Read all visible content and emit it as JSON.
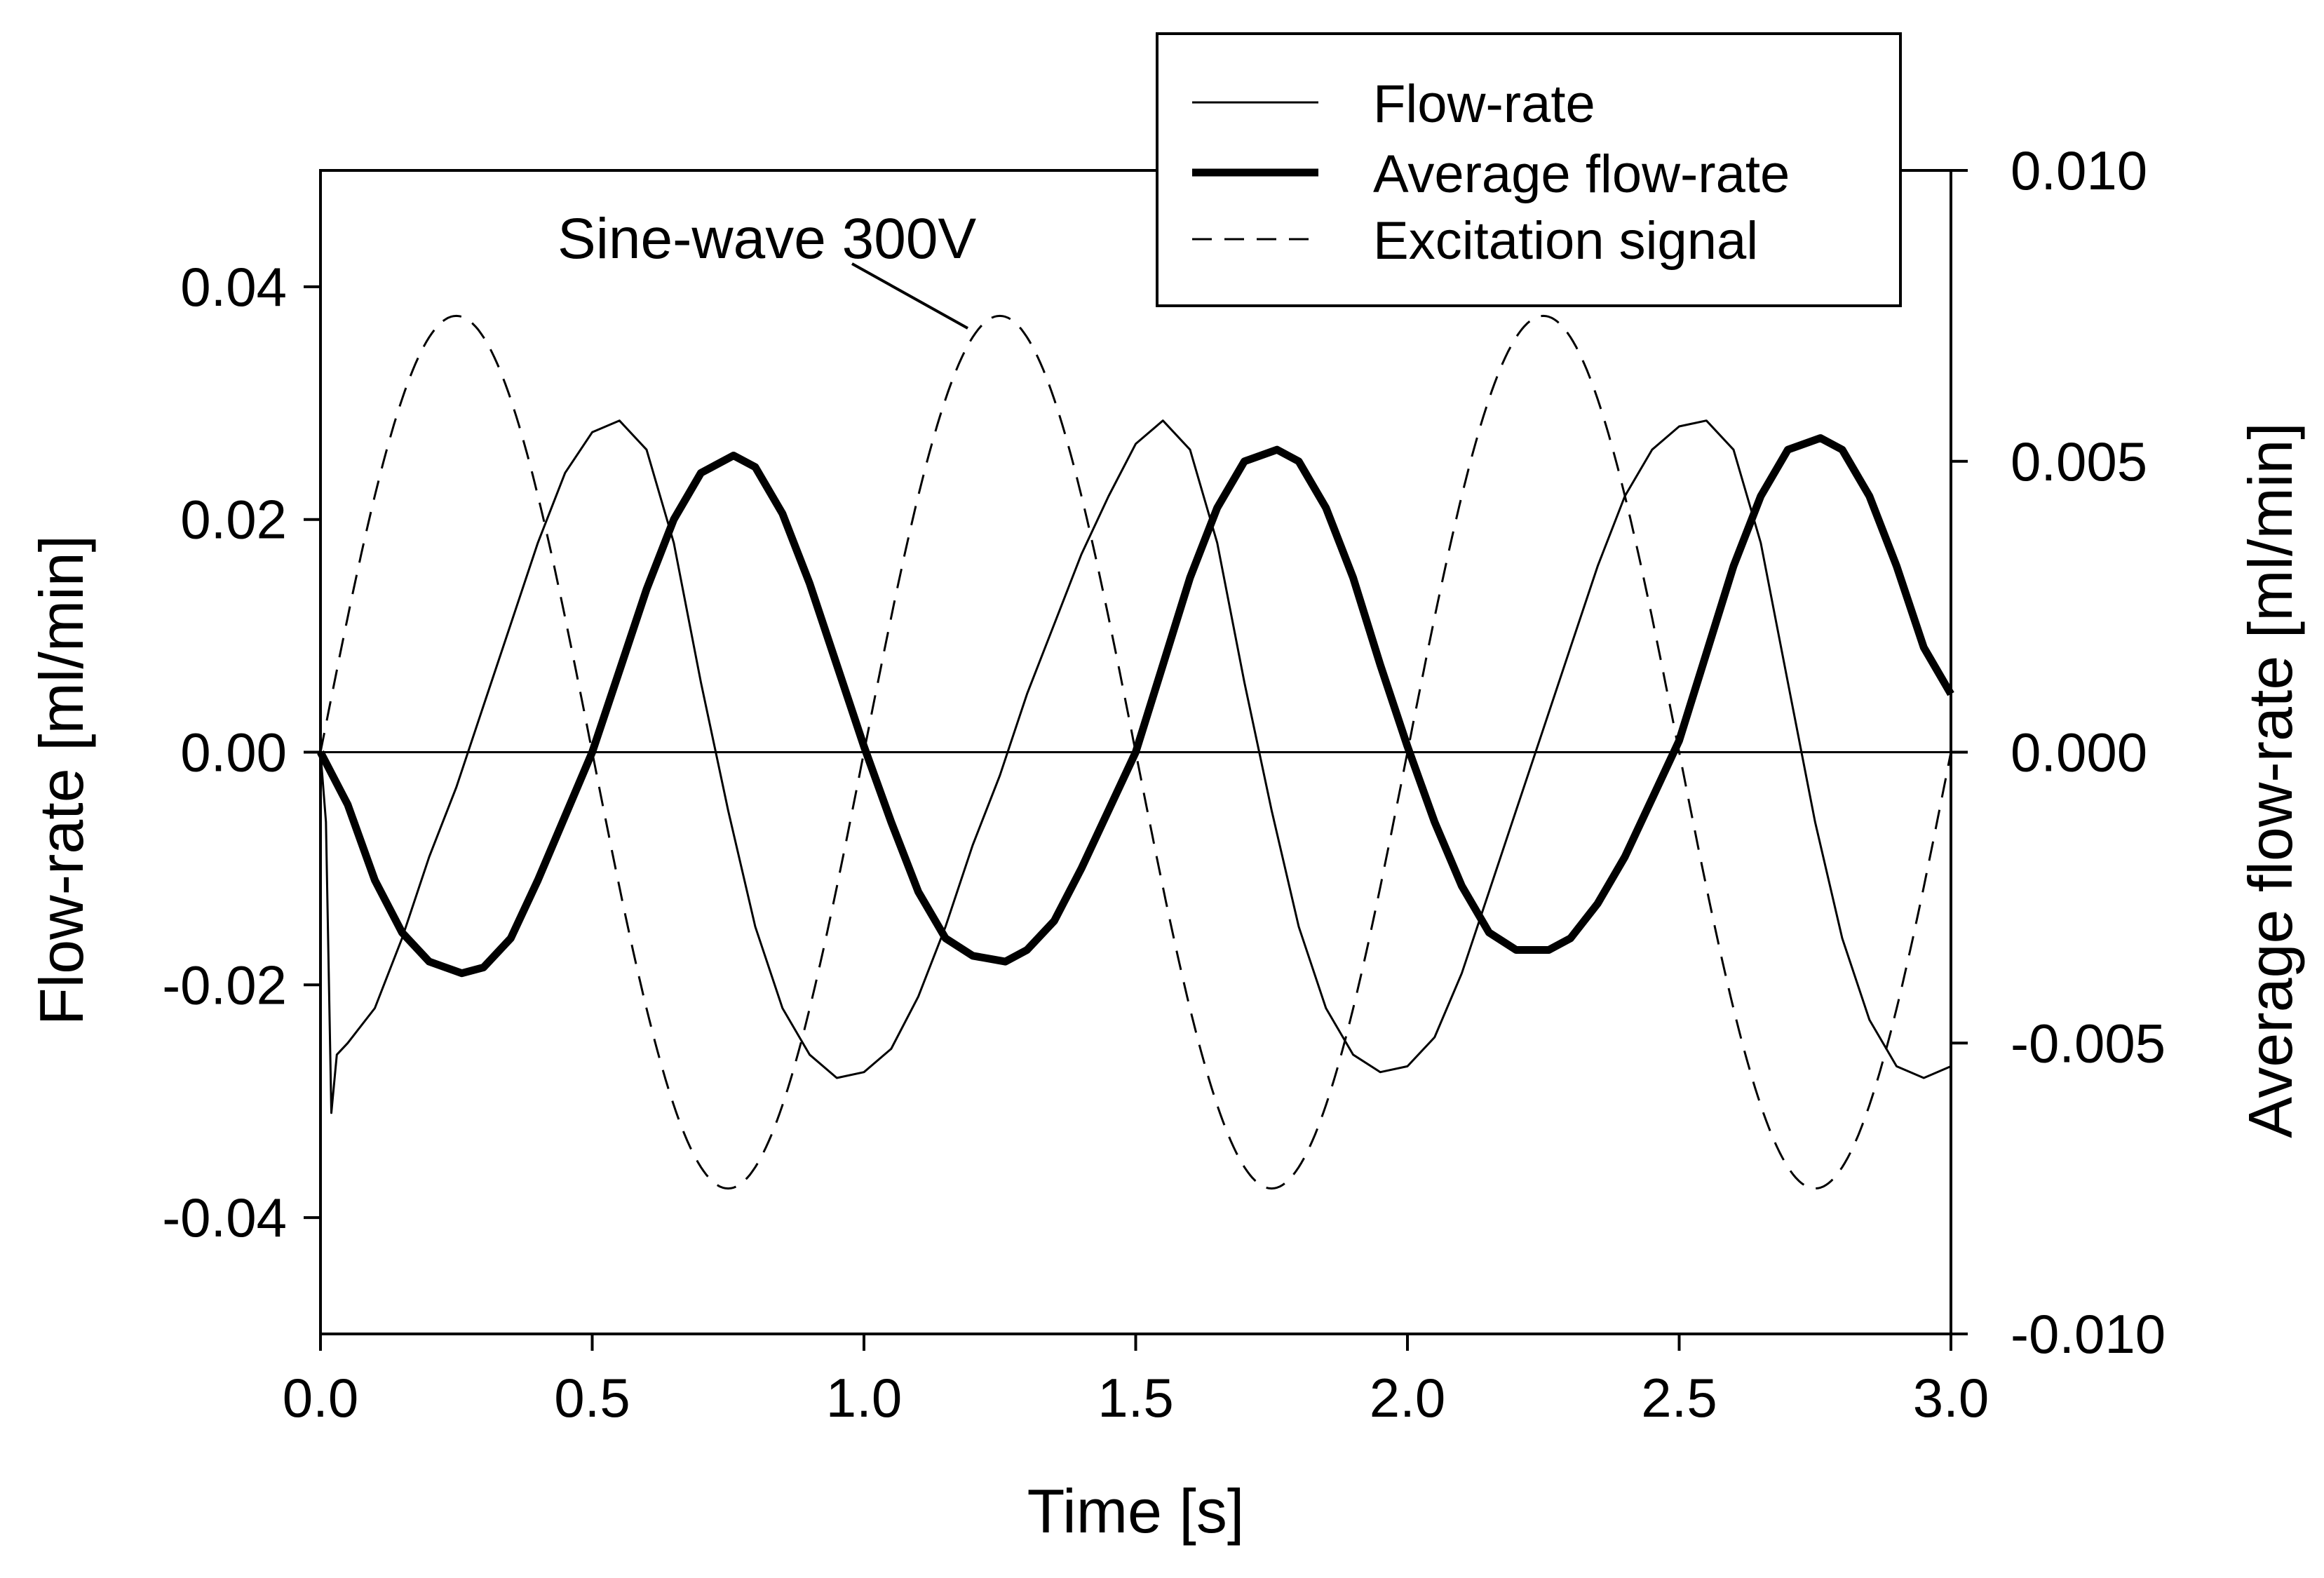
{
  "chart_data": {
    "type": "line",
    "annotation": "Sine-wave 300V",
    "x_axis": {
      "label": "Time [s]",
      "range": [
        0.0,
        3.0
      ],
      "ticks": [
        0.0,
        0.5,
        1.0,
        1.5,
        2.0,
        2.5,
        3.0
      ],
      "tick_labels": [
        "0.0",
        "0.5",
        "1.0",
        "1.5",
        "2.0",
        "2.5",
        "3.0"
      ]
    },
    "y_axis_left": {
      "label": "Flow-rate [ml/min]",
      "range": [
        -0.05,
        0.05
      ],
      "ticks": [
        -0.04,
        -0.02,
        0.0,
        0.02,
        0.04
      ],
      "tick_labels": [
        "-0.04",
        "-0.02",
        "0.00",
        "0.02",
        "0.04"
      ]
    },
    "y_axis_right": {
      "label": "Average flow-rate [ml/min]",
      "range": [
        -0.01,
        0.01
      ],
      "ticks": [
        -0.01,
        -0.005,
        0.0,
        0.005,
        0.01
      ],
      "tick_labels": [
        "-0.010",
        "-0.005",
        "0.000",
        "0.005",
        "0.010"
      ]
    },
    "legend": {
      "position": "top-right",
      "entries": [
        "Flow-rate",
        "Average flow-rate",
        "Excitation signal"
      ]
    },
    "series": [
      {
        "name": "Flow-rate",
        "axis": "left",
        "style": "thin-solid",
        "points": [
          [
            0.0,
            0.0
          ],
          [
            0.01,
            -0.006
          ],
          [
            0.02,
            -0.031
          ],
          [
            0.03,
            -0.026
          ],
          [
            0.05,
            -0.025
          ],
          [
            0.1,
            -0.022
          ],
          [
            0.15,
            -0.016
          ],
          [
            0.2,
            -0.009
          ],
          [
            0.25,
            -0.003
          ],
          [
            0.3,
            0.004
          ],
          [
            0.35,
            0.011
          ],
          [
            0.4,
            0.018
          ],
          [
            0.45,
            0.024
          ],
          [
            0.5,
            0.0275
          ],
          [
            0.55,
            0.0285
          ],
          [
            0.6,
            0.026
          ],
          [
            0.65,
            0.018
          ],
          [
            0.7,
            0.006
          ],
          [
            0.75,
            -0.005
          ],
          [
            0.8,
            -0.015
          ],
          [
            0.85,
            -0.022
          ],
          [
            0.9,
            -0.026
          ],
          [
            0.95,
            -0.028
          ],
          [
            1.0,
            -0.0275
          ],
          [
            1.05,
            -0.0255
          ],
          [
            1.1,
            -0.021
          ],
          [
            1.15,
            -0.015
          ],
          [
            1.2,
            -0.008
          ],
          [
            1.25,
            -0.002
          ],
          [
            1.3,
            0.005
          ],
          [
            1.35,
            0.011
          ],
          [
            1.4,
            0.017
          ],
          [
            1.45,
            0.022
          ],
          [
            1.5,
            0.0265
          ],
          [
            1.55,
            0.0285
          ],
          [
            1.6,
            0.026
          ],
          [
            1.65,
            0.018
          ],
          [
            1.7,
            0.006
          ],
          [
            1.75,
            -0.005
          ],
          [
            1.8,
            -0.015
          ],
          [
            1.85,
            -0.022
          ],
          [
            1.9,
            -0.026
          ],
          [
            1.95,
            -0.0275
          ],
          [
            2.0,
            -0.027
          ],
          [
            2.05,
            -0.0245
          ],
          [
            2.1,
            -0.019
          ],
          [
            2.15,
            -0.012
          ],
          [
            2.2,
            -0.005
          ],
          [
            2.25,
            0.002
          ],
          [
            2.3,
            0.009
          ],
          [
            2.35,
            0.016
          ],
          [
            2.4,
            0.022
          ],
          [
            2.45,
            0.026
          ],
          [
            2.5,
            0.028
          ],
          [
            2.55,
            0.0285
          ],
          [
            2.6,
            0.026
          ],
          [
            2.65,
            0.018
          ],
          [
            2.7,
            0.006
          ],
          [
            2.75,
            -0.006
          ],
          [
            2.8,
            -0.016
          ],
          [
            2.85,
            -0.023
          ],
          [
            2.9,
            -0.027
          ],
          [
            2.95,
            -0.028
          ],
          [
            3.0,
            -0.027
          ]
        ]
      },
      {
        "name": "Average flow-rate",
        "axis": "right",
        "style": "thick-solid",
        "points": [
          [
            0.0,
            0.0
          ],
          [
            0.05,
            -0.0009
          ],
          [
            0.1,
            -0.0022
          ],
          [
            0.15,
            -0.0031
          ],
          [
            0.2,
            -0.0036
          ],
          [
            0.26,
            -0.0038
          ],
          [
            0.3,
            -0.0037
          ],
          [
            0.35,
            -0.0032
          ],
          [
            0.4,
            -0.0022
          ],
          [
            0.45,
            -0.0011
          ],
          [
            0.5,
            0.0
          ],
          [
            0.55,
            0.0014
          ],
          [
            0.6,
            0.0028
          ],
          [
            0.65,
            0.004
          ],
          [
            0.7,
            0.0048
          ],
          [
            0.76,
            0.0051
          ],
          [
            0.8,
            0.0049
          ],
          [
            0.85,
            0.0041
          ],
          [
            0.9,
            0.0029
          ],
          [
            0.95,
            0.0015
          ],
          [
            1.0,
            0.0001
          ],
          [
            1.05,
            -0.0012
          ],
          [
            1.1,
            -0.0024
          ],
          [
            1.15,
            -0.0032
          ],
          [
            1.2,
            -0.0035
          ],
          [
            1.26,
            -0.0036
          ],
          [
            1.3,
            -0.0034
          ],
          [
            1.35,
            -0.0029
          ],
          [
            1.4,
            -0.002
          ],
          [
            1.45,
            -0.001
          ],
          [
            1.5,
            0.0
          ],
          [
            1.55,
            0.0015
          ],
          [
            1.6,
            0.003
          ],
          [
            1.65,
            0.0042
          ],
          [
            1.7,
            0.005
          ],
          [
            1.76,
            0.0052
          ],
          [
            1.8,
            0.005
          ],
          [
            1.85,
            0.0042
          ],
          [
            1.9,
            0.003
          ],
          [
            1.95,
            0.0015
          ],
          [
            2.0,
            0.0001
          ],
          [
            2.05,
            -0.0012
          ],
          [
            2.1,
            -0.0023
          ],
          [
            2.15,
            -0.0031
          ],
          [
            2.2,
            -0.0034
          ],
          [
            2.26,
            -0.0034
          ],
          [
            2.3,
            -0.0032
          ],
          [
            2.35,
            -0.0026
          ],
          [
            2.4,
            -0.0018
          ],
          [
            2.45,
            -0.0008
          ],
          [
            2.5,
            0.0002
          ],
          [
            2.55,
            0.0017
          ],
          [
            2.6,
            0.0032
          ],
          [
            2.65,
            0.0044
          ],
          [
            2.7,
            0.0052
          ],
          [
            2.76,
            0.0054
          ],
          [
            2.8,
            0.0052
          ],
          [
            2.85,
            0.0044
          ],
          [
            2.9,
            0.0032
          ],
          [
            2.95,
            0.0018
          ],
          [
            3.0,
            0.001
          ]
        ]
      },
      {
        "name": "Excitation signal",
        "axis": "left",
        "style": "dashed",
        "amplitude": 0.0375,
        "frequency_hz": 1.0,
        "x_range": [
          0.0,
          3.0
        ]
      }
    ]
  }
}
